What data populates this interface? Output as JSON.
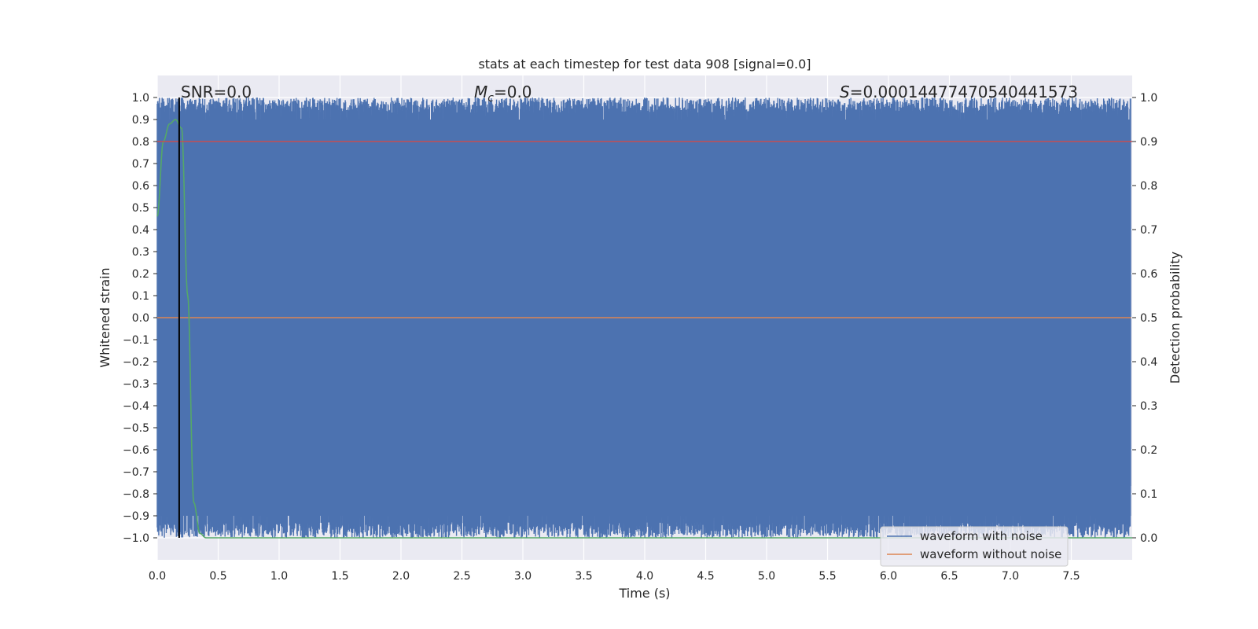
{
  "chart_data": {
    "type": "line",
    "title": "stats at each timestep for test data 908 [signal=0.0]",
    "xlabel": "Time (s)",
    "ylabel_left": "Whitened strain",
    "ylabel_right": "Detection probability",
    "xlim": [
      0.0,
      8.0
    ],
    "ylim_left": [
      -1.1,
      1.1
    ],
    "ylim_right": [
      -0.05,
      1.05
    ],
    "x_ticks": [
      "0.0",
      "0.5",
      "1.0",
      "1.5",
      "2.0",
      "2.5",
      "3.0",
      "3.5",
      "4.0",
      "4.5",
      "5.0",
      "5.5",
      "6.0",
      "6.5",
      "7.0",
      "7.5"
    ],
    "y_ticks_left": [
      "1.0",
      "0.9",
      "0.8",
      "0.7",
      "0.6",
      "0.5",
      "0.4",
      "0.3",
      "0.2",
      "0.1",
      "0.0",
      "−0.1",
      "−0.2",
      "−0.3",
      "−0.4",
      "−0.5",
      "−0.6",
      "−0.7",
      "−0.8",
      "−0.9",
      "−1.0"
    ],
    "y_ticks_right": [
      "1.0",
      "0.9",
      "0.8",
      "0.7",
      "0.6",
      "0.5",
      "0.4",
      "0.3",
      "0.2",
      "0.1",
      "0.0"
    ],
    "grid": true,
    "annotations": {
      "snr": "SNR=0.0",
      "mc_symbol": "M",
      "mc_sub": "c",
      "mc_value": "=0.0",
      "s_symbol": "S",
      "s_value": "=0.00014477470540441573"
    },
    "series": [
      {
        "name": "waveform with noise",
        "axis": "left",
        "color": "#4c72b0",
        "style": "dense noise filling approximately -1.0 to 1.0 across full duration"
      },
      {
        "name": "waveform without noise",
        "axis": "left",
        "color": "#dd8452",
        "x": [
          0.0,
          7.99
        ],
        "y": [
          0.0,
          0.0
        ]
      },
      {
        "axis": "right",
        "color": "#55a868",
        "x": [
          0.0,
          0.05,
          0.1,
          0.15,
          0.2,
          0.25,
          0.3,
          0.35,
          0.4,
          8.0
        ],
        "y": [
          0.73,
          0.9,
          0.94,
          0.95,
          0.93,
          0.55,
          0.08,
          0.01,
          0.0,
          0.0
        ]
      },
      {
        "axis": "right",
        "color": "#c44e52",
        "x": [
          0.0,
          8.0
        ],
        "y": [
          0.9,
          0.9
        ]
      },
      {
        "axis": "right",
        "color": "#000000",
        "x": [
          0.18,
          0.18
        ],
        "y": [
          0.0,
          1.0
        ]
      }
    ],
    "legend": {
      "placement": "lower-right",
      "entries": [
        {
          "label": "waveform with noise",
          "color": "#4c72b0"
        },
        {
          "label": "waveform without noise",
          "color": "#dd8452"
        }
      ]
    }
  }
}
